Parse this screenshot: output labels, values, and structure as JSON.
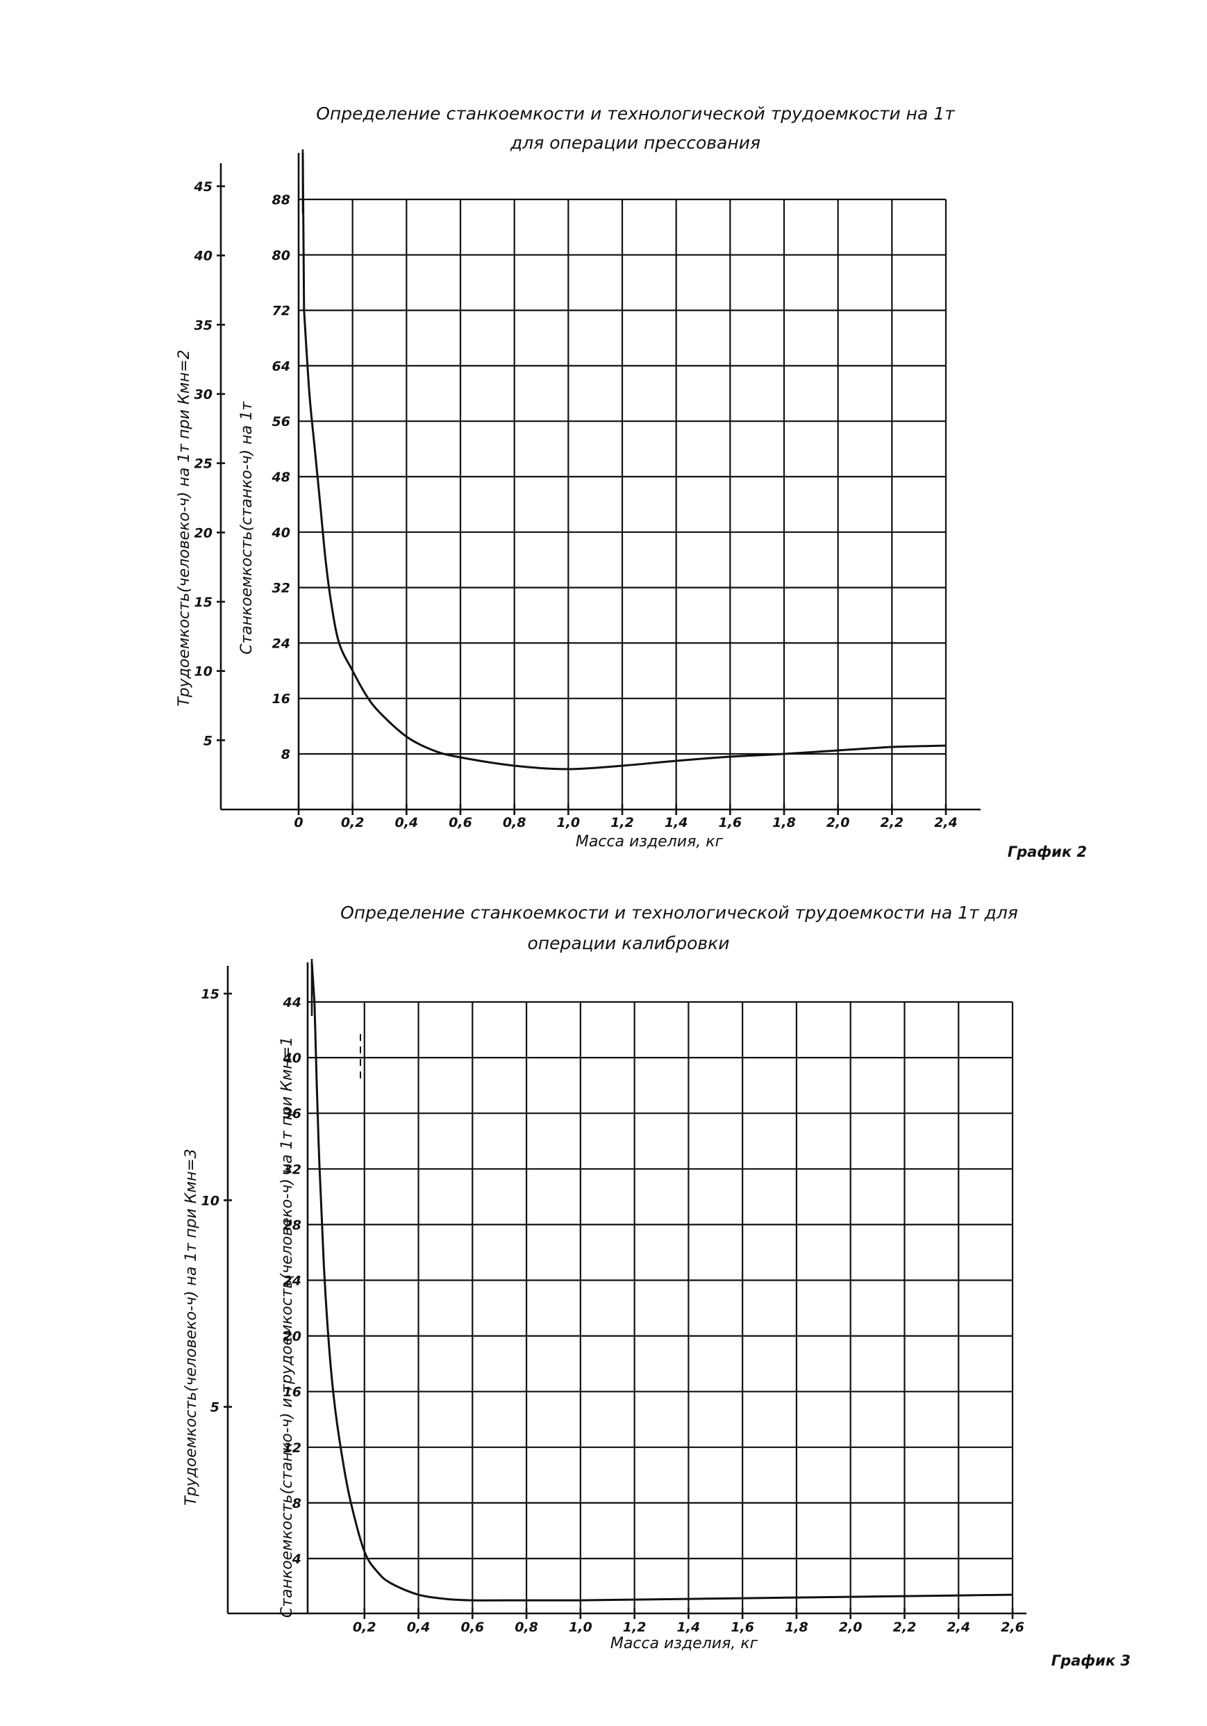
{
  "charts": [
    {
      "title_line1": "Определение станкоемкости и технологической трудоемкости на 1т",
      "title_line2": "для операции прессования",
      "xlabel": "Масса изделия, кг",
      "ylabel_right": "Станкоемкость(станко-ч)    на 1т",
      "ylabel_left": "Трудоемкость(человеко-ч)    на 1т при Кмн=2",
      "caption": "График 2",
      "x_ticks": [
        "0",
        "0,2",
        "0,4",
        "0,6",
        "0,8",
        "1,0",
        "1,2",
        "1,4",
        "1,6",
        "1,8",
        "2,0",
        "2,2",
        "2,4"
      ],
      "y_ticks_right": [
        "8",
        "16",
        "24",
        "32",
        "40",
        "48",
        "56",
        "64",
        "72",
        "80",
        "88"
      ],
      "y_ticks_left": [
        "5",
        "10",
        "15",
        "20",
        "25",
        "30",
        "35",
        "40",
        "45"
      ]
    },
    {
      "title_line1": "Определение станкоемкости и технологической трудоемкости на 1т для",
      "title_line2": "операции калибровки",
      "xlabel": "Масса изделия, кг",
      "ylabel_right": "Станкоемкость(станко-ч)  и трудоемкость(человеко-ч)  на 1т при Кмн=1",
      "ylabel_left": "Трудоемкость(человеко-ч)    на 1т при Кмн=3",
      "caption": "График 3",
      "x_ticks": [
        "0,2",
        "0,4",
        "0,6",
        "0,8",
        "1,0",
        "1,2",
        "1,4",
        "1,6",
        "1,8",
        "2,0",
        "2,2",
        "2,4",
        "2,6"
      ],
      "y_ticks_right": [
        "4",
        "8",
        "12",
        "16",
        "20",
        "24",
        "28",
        "32",
        "36",
        "40",
        "44"
      ],
      "y_ticks_left": [
        "5",
        "10",
        "15"
      ]
    }
  ],
  "chart_data": [
    {
      "type": "line",
      "x_unit": "кг",
      "xlim": [
        0,
        2.4
      ],
      "ylim": [
        0,
        88
      ],
      "ylim_left": [
        0,
        45
      ],
      "grid": true,
      "series": [
        {
          "x": [
            0.02,
            0.04,
            0.06,
            0.08,
            0.1,
            0.12,
            0.15,
            0.2,
            0.25,
            0.3,
            0.4,
            0.5,
            0.6,
            0.8,
            1.0,
            1.2,
            1.4,
            1.6,
            1.8,
            2.0,
            2.2,
            2.4
          ],
          "y": [
            72,
            60,
            52,
            44,
            36,
            30,
            24,
            20,
            16.5,
            14,
            10.5,
            8.5,
            7.5,
            6.3,
            5.8,
            6.3,
            7,
            7.6,
            8,
            8.5,
            9,
            9.2
          ]
        }
      ]
    },
    {
      "type": "line",
      "x_unit": "кг",
      "xlim": [
        0,
        2.6
      ],
      "ylim": [
        0,
        44
      ],
      "ylim_left": [
        0,
        15
      ],
      "grid": true,
      "series": [
        {
          "x": [
            0.015,
            0.03,
            0.05,
            0.07,
            0.09,
            0.12,
            0.15,
            0.2,
            0.25,
            0.3,
            0.4,
            0.5,
            0.6,
            0.8,
            1.0,
            1.2,
            1.4,
            1.6,
            1.8,
            2.0,
            2.2,
            2.4,
            2.6
          ],
          "y": [
            44,
            34,
            25,
            19,
            15,
            11,
            8,
            4.5,
            3,
            2.2,
            1.4,
            1.1,
            1.0,
            1.0,
            1.0,
            1.05,
            1.1,
            1.15,
            1.2,
            1.25,
            1.3,
            1.35,
            1.4
          ]
        }
      ]
    }
  ]
}
